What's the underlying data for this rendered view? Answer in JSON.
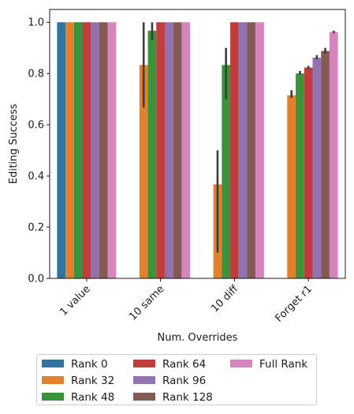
{
  "chart_data": {
    "type": "bar",
    "xlabel": "Num. Overrides",
    "ylabel": "Editing Success",
    "ylim": [
      0,
      1.05
    ],
    "yticks": [
      0.0,
      0.2,
      0.4,
      0.6,
      0.8,
      1.0
    ],
    "ytick_labels": [
      "0.0",
      "0.2",
      "0.4",
      "0.6",
      "0.8",
      "1.0"
    ],
    "categories": [
      "1 value",
      "10 same",
      "10 diff",
      "Forget r1"
    ],
    "grid": false,
    "legend_position": "bottom",
    "legend_columns": 3,
    "series": [
      {
        "name": "Rank 0",
        "color": "#3274a1",
        "values": [
          1.0,
          0.0,
          0.0,
          0.0
        ],
        "err": [
          null,
          null,
          null,
          null
        ]
      },
      {
        "name": "Rank 32",
        "color": "#e1812c",
        "values": [
          1.0,
          0.833,
          0.367,
          0.715
        ],
        "err": [
          null,
          [
            0.667,
            1.0
          ],
          [
            0.1,
            0.5
          ],
          [
            0.705,
            0.735
          ]
        ]
      },
      {
        "name": "Rank 48",
        "color": "#3a923a",
        "values": [
          1.0,
          0.967,
          0.833,
          0.8
        ],
        "err": [
          null,
          [
            0.93,
            1.0
          ],
          [
            0.7,
            0.9
          ],
          [
            0.795,
            0.81
          ]
        ]
      },
      {
        "name": "Rank 64",
        "color": "#c03d3e",
        "values": [
          1.0,
          1.0,
          1.0,
          0.823
        ],
        "err": [
          null,
          null,
          null,
          [
            0.818,
            0.83
          ]
        ]
      },
      {
        "name": "Rank 96",
        "color": "#9372b2",
        "values": [
          1.0,
          1.0,
          1.0,
          0.862
        ],
        "err": [
          null,
          null,
          null,
          [
            0.855,
            0.872
          ]
        ]
      },
      {
        "name": "Rank 128",
        "color": "#845b53",
        "values": [
          1.0,
          1.0,
          1.0,
          0.888
        ],
        "err": [
          null,
          null,
          null,
          [
            0.878,
            0.9
          ]
        ]
      },
      {
        "name": "Full Rank",
        "color": "#d684bd",
        "values": [
          1.0,
          1.0,
          1.0,
          0.962
        ],
        "err": [
          null,
          null,
          null,
          [
            0.957,
            0.967
          ]
        ]
      }
    ]
  }
}
